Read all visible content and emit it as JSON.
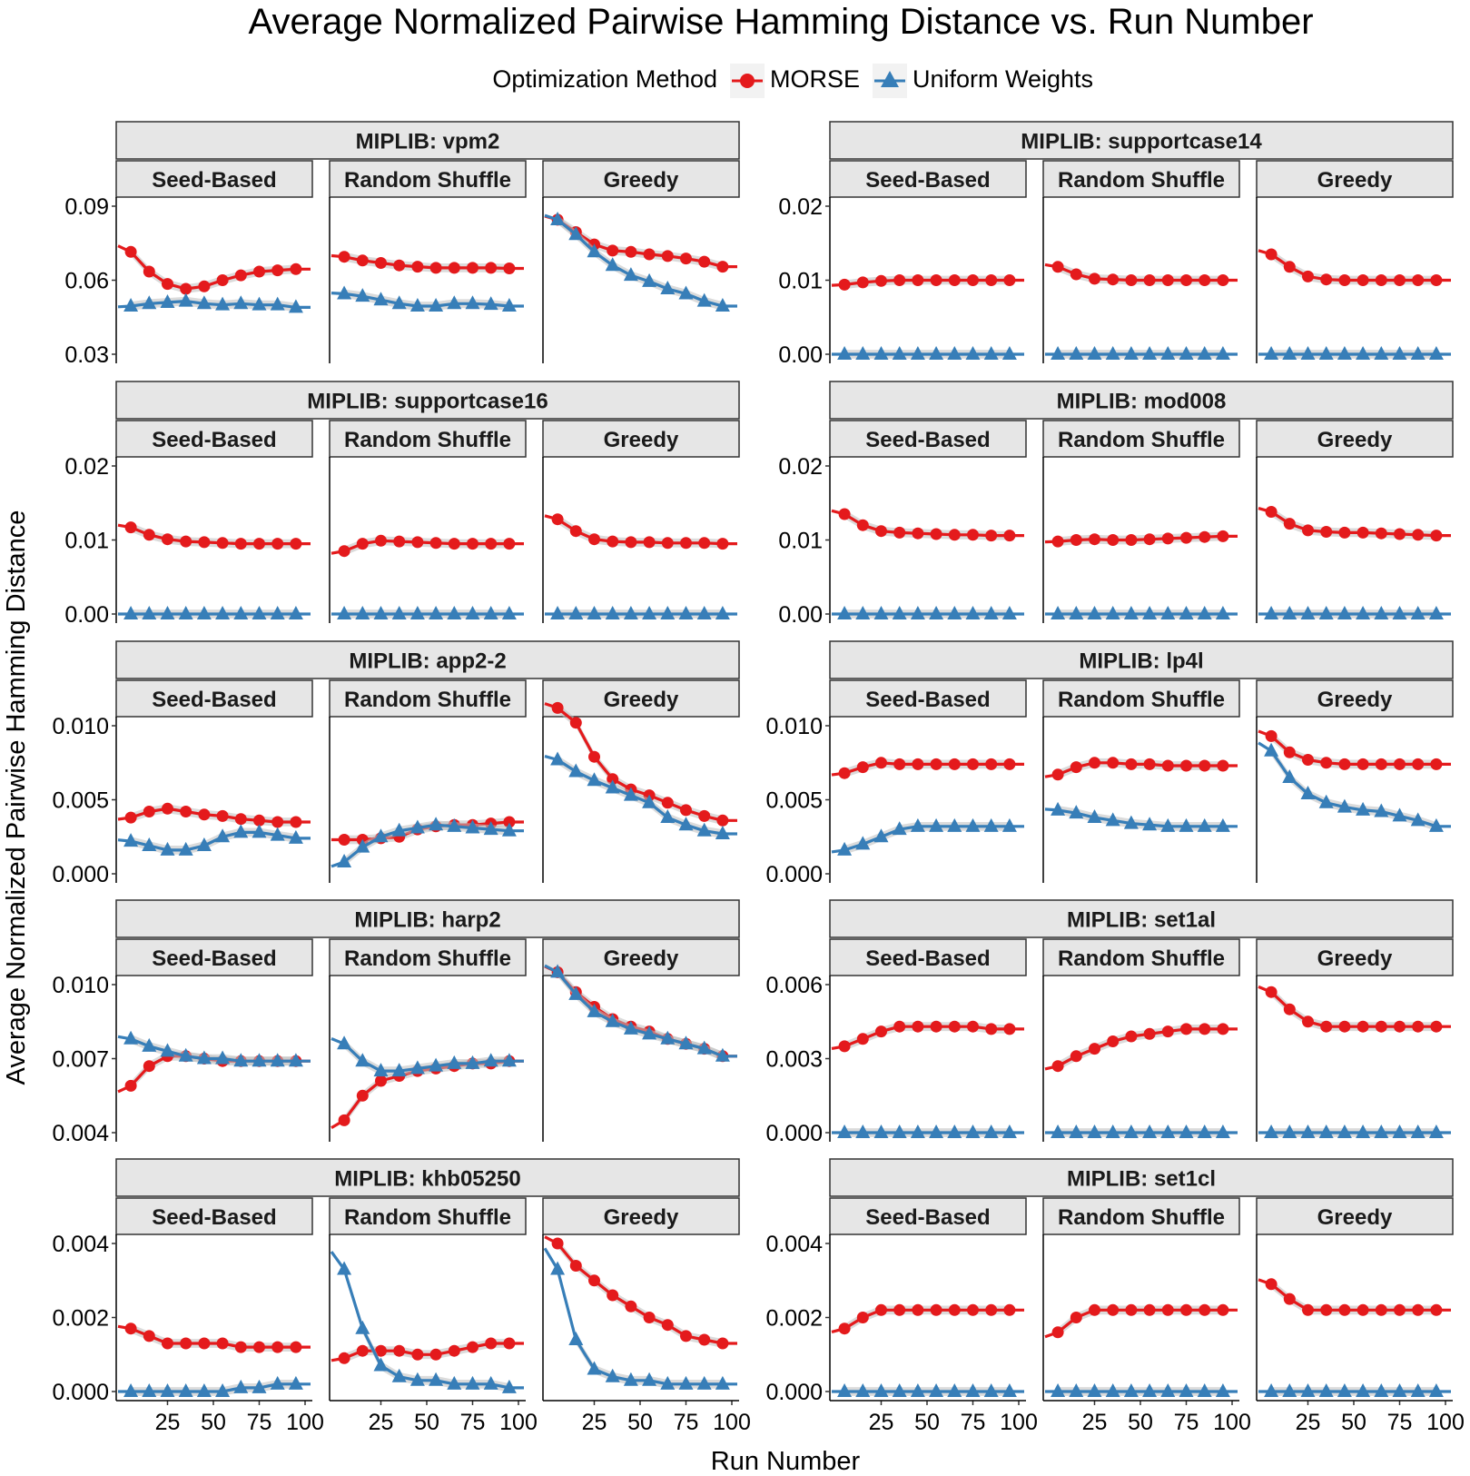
{
  "chart_data": {
    "type": "line",
    "title": "Average Normalized Pairwise Hamming Distance vs. Run Number",
    "xlabel": "Run Number",
    "ylabel": "Average Normalized Pairwise Hamming Distance",
    "legend": {
      "title": "Optimization Method",
      "position": "top",
      "entries": [
        {
          "name": "MORSE",
          "color": "#e41a1c",
          "marker": "circle"
        },
        {
          "name": "Uniform Weights",
          "color": "#377eb8",
          "marker": "triangle"
        }
      ]
    },
    "x": [
      5,
      15,
      25,
      35,
      45,
      55,
      65,
      75,
      85,
      95
    ],
    "xlim": [
      1,
      100
    ],
    "x_ticks": [
      "25",
      "50",
      "75",
      "100"
    ],
    "methods": [
      "Seed-Based",
      "Random Shuffle",
      "Greedy"
    ],
    "panels": [
      {
        "problem": "MIPLIB: vpm2",
        "ylim": [
          0.03,
          0.09
        ],
        "y_ticks": [
          "0.03",
          "0.06",
          "0.09"
        ],
        "series": {
          "Seed-Based": {
            "MORSE": [
              0.0715,
              0.0635,
              0.0585,
              0.0565,
              0.0575,
              0.06,
              0.062,
              0.0635,
              0.064,
              0.0645
            ],
            "Uniform Weights": [
              0.0495,
              0.0505,
              0.051,
              0.0515,
              0.0505,
              0.05,
              0.0505,
              0.05,
              0.05,
              0.049
            ]
          },
          "Random Shuffle": {
            "MORSE": [
              0.0695,
              0.068,
              0.067,
              0.066,
              0.0655,
              0.065,
              0.065,
              0.065,
              0.065,
              0.0648
            ],
            "Uniform Weights": [
              0.0545,
              0.0535,
              0.052,
              0.0505,
              0.0495,
              0.0495,
              0.0505,
              0.0505,
              0.0502,
              0.0495
            ]
          },
          "Greedy": {
            "MORSE": [
              0.0845,
              0.0795,
              0.0745,
              0.072,
              0.0715,
              0.0705,
              0.0698,
              0.0688,
              0.0675,
              0.0655
            ],
            "Uniform Weights": [
              0.0845,
              0.0785,
              0.0715,
              0.066,
              0.062,
              0.0595,
              0.0565,
              0.0545,
              0.0515,
              0.0495
            ]
          }
        }
      },
      {
        "problem": "MIPLIB: supportcase14",
        "ylim": [
          0.0,
          0.02
        ],
        "y_ticks": [
          "0.00",
          "0.01",
          "0.02"
        ],
        "series": {
          "Seed-Based": {
            "MORSE": [
              0.0094,
              0.0097,
              0.0099,
              0.01,
              0.01,
              0.01,
              0.01,
              0.01,
              0.01,
              0.01
            ],
            "Uniform Weights": [
              0.0,
              0.0,
              0.0,
              0.0,
              0.0,
              0.0,
              0.0,
              0.0,
              0.0,
              0.0
            ]
          },
          "Random Shuffle": {
            "MORSE": [
              0.0118,
              0.0108,
              0.0102,
              0.0101,
              0.01,
              0.01,
              0.01,
              0.01,
              0.01,
              0.01
            ],
            "Uniform Weights": [
              0.0,
              0.0,
              0.0,
              0.0,
              0.0,
              0.0,
              0.0,
              0.0,
              0.0,
              0.0
            ]
          },
          "Greedy": {
            "MORSE": [
              0.0135,
              0.0118,
              0.0105,
              0.0101,
              0.01,
              0.01,
              0.01,
              0.01,
              0.01,
              0.01
            ],
            "Uniform Weights": [
              0.0,
              0.0,
              0.0,
              0.0,
              0.0,
              0.0,
              0.0,
              0.0,
              0.0,
              0.0
            ]
          }
        }
      },
      {
        "problem": "MIPLIB: supportcase16",
        "ylim": [
          0.0,
          0.02
        ],
        "y_ticks": [
          "0.00",
          "0.01",
          "0.02"
        ],
        "series": {
          "Seed-Based": {
            "MORSE": [
              0.0117,
              0.0107,
              0.0101,
              0.0098,
              0.0097,
              0.0096,
              0.0095,
              0.0095,
              0.0095,
              0.0095
            ],
            "Uniform Weights": [
              0.0,
              0.0,
              0.0,
              0.0,
              0.0,
              0.0,
              0.0,
              0.0,
              0.0,
              0.0
            ]
          },
          "Random Shuffle": {
            "MORSE": [
              0.0085,
              0.0095,
              0.0099,
              0.0098,
              0.0097,
              0.0096,
              0.0095,
              0.0095,
              0.0095,
              0.0095
            ],
            "Uniform Weights": [
              0.0,
              0.0,
              0.0,
              0.0,
              0.0,
              0.0,
              0.0,
              0.0,
              0.0,
              0.0
            ]
          },
          "Greedy": {
            "MORSE": [
              0.0128,
              0.0112,
              0.0101,
              0.0098,
              0.0097,
              0.0097,
              0.0096,
              0.0096,
              0.0096,
              0.0095
            ],
            "Uniform Weights": [
              0.0,
              0.0,
              0.0,
              0.0,
              0.0,
              0.0,
              0.0,
              0.0,
              0.0,
              0.0
            ]
          }
        }
      },
      {
        "problem": "MIPLIB: mod008",
        "ylim": [
          0.0,
          0.02
        ],
        "y_ticks": [
          "0.00",
          "0.01",
          "0.02"
        ],
        "series": {
          "Seed-Based": {
            "MORSE": [
              0.0135,
              0.012,
              0.0112,
              0.011,
              0.0109,
              0.0108,
              0.0107,
              0.0107,
              0.0106,
              0.0106
            ],
            "Uniform Weights": [
              0.0,
              0.0,
              0.0,
              0.0,
              0.0,
              0.0,
              0.0,
              0.0,
              0.0,
              0.0
            ]
          },
          "Random Shuffle": {
            "MORSE": [
              0.0098,
              0.01,
              0.0101,
              0.01,
              0.01,
              0.0101,
              0.0102,
              0.0103,
              0.0104,
              0.0105
            ],
            "Uniform Weights": [
              0.0,
              0.0,
              0.0,
              0.0,
              0.0,
              0.0,
              0.0,
              0.0,
              0.0,
              0.0
            ]
          },
          "Greedy": {
            "MORSE": [
              0.0138,
              0.0122,
              0.0113,
              0.0111,
              0.011,
              0.011,
              0.0109,
              0.0108,
              0.0107,
              0.0106
            ],
            "Uniform Weights": [
              0.0,
              0.0,
              0.0,
              0.0,
              0.0,
              0.0,
              0.0,
              0.0,
              0.0,
              0.0
            ]
          }
        }
      },
      {
        "problem": "MIPLIB: app2-2",
        "ylim": [
          0.0,
          0.01
        ],
        "y_ticks": [
          "0.000",
          "0.005",
          "0.010"
        ],
        "series": {
          "Seed-Based": {
            "MORSE": [
              0.0038,
              0.0042,
              0.0044,
              0.0042,
              0.004,
              0.0039,
              0.0037,
              0.0036,
              0.0035,
              0.0035
            ],
            "Uniform Weights": [
              0.0022,
              0.0019,
              0.0016,
              0.0016,
              0.0019,
              0.0025,
              0.0028,
              0.0028,
              0.0026,
              0.0024
            ]
          },
          "Random Shuffle": {
            "MORSE": [
              0.0023,
              0.0023,
              0.0024,
              0.0025,
              0.003,
              0.0032,
              0.0033,
              0.0033,
              0.0034,
              0.0035
            ],
            "Uniform Weights": [
              0.0008,
              0.0018,
              0.0025,
              0.0029,
              0.0031,
              0.0033,
              0.0032,
              0.0031,
              0.003,
              0.0029
            ]
          },
          "Greedy": {
            "MORSE": [
              0.0112,
              0.0102,
              0.0079,
              0.0064,
              0.0057,
              0.0053,
              0.0048,
              0.0043,
              0.0039,
              0.0036
            ],
            "Uniform Weights": [
              0.0077,
              0.0069,
              0.0063,
              0.0058,
              0.0053,
              0.0048,
              0.0038,
              0.0033,
              0.0029,
              0.0027
            ]
          }
        }
      },
      {
        "problem": "MIPLIB: lp4l",
        "ylim": [
          0.0,
          0.01
        ],
        "y_ticks": [
          "0.000",
          "0.005",
          "0.010"
        ],
        "series": {
          "Seed-Based": {
            "MORSE": [
              0.0068,
              0.0072,
              0.0075,
              0.0074,
              0.0074,
              0.0074,
              0.0074,
              0.0074,
              0.0074,
              0.0074
            ],
            "Uniform Weights": [
              0.0016,
              0.002,
              0.0025,
              0.003,
              0.0032,
              0.0032,
              0.0032,
              0.0032,
              0.0032,
              0.0032
            ]
          },
          "Random Shuffle": {
            "MORSE": [
              0.0067,
              0.0072,
              0.0075,
              0.0075,
              0.0074,
              0.0074,
              0.0073,
              0.0073,
              0.0073,
              0.0073
            ],
            "Uniform Weights": [
              0.0043,
              0.0041,
              0.0038,
              0.0036,
              0.0034,
              0.0033,
              0.0032,
              0.0032,
              0.0032,
              0.0032
            ]
          },
          "Greedy": {
            "MORSE": [
              0.0093,
              0.0082,
              0.0077,
              0.0075,
              0.0074,
              0.0074,
              0.0074,
              0.0074,
              0.0074,
              0.0074
            ],
            "Uniform Weights": [
              0.0083,
              0.0065,
              0.0054,
              0.0048,
              0.0045,
              0.0043,
              0.0042,
              0.0039,
              0.0036,
              0.0032
            ]
          }
        }
      },
      {
        "problem": "MIPLIB: harp2",
        "ylim": [
          0.004,
          0.01
        ],
        "y_ticks": [
          "0.004",
          "0.007",
          "0.010"
        ],
        "series": {
          "Seed-Based": {
            "MORSE": [
              0.0059,
              0.0067,
              0.0071,
              0.0071,
              0.007,
              0.0069,
              0.0069,
              0.0069,
              0.0069,
              0.0069
            ],
            "Uniform Weights": [
              0.0078,
              0.0075,
              0.0073,
              0.0071,
              0.007,
              0.007,
              0.0069,
              0.0069,
              0.0069,
              0.0069
            ]
          },
          "Random Shuffle": {
            "MORSE": [
              0.0045,
              0.0055,
              0.0061,
              0.0063,
              0.0065,
              0.0066,
              0.0067,
              0.0068,
              0.0068,
              0.0069
            ],
            "Uniform Weights": [
              0.0076,
              0.0069,
              0.0065,
              0.0065,
              0.0066,
              0.0067,
              0.0068,
              0.0068,
              0.0069,
              0.0069
            ]
          },
          "Greedy": {
            "MORSE": [
              0.0105,
              0.0097,
              0.0091,
              0.0086,
              0.0083,
              0.0081,
              0.0078,
              0.0076,
              0.0074,
              0.0071
            ],
            "Uniform Weights": [
              0.0105,
              0.0096,
              0.0089,
              0.0085,
              0.0082,
              0.008,
              0.0078,
              0.0076,
              0.0074,
              0.0071
            ]
          }
        }
      },
      {
        "problem": "MIPLIB: set1al",
        "ylim": [
          0.0,
          0.006
        ],
        "y_ticks": [
          "0.000",
          "0.003",
          "0.006"
        ],
        "series": {
          "Seed-Based": {
            "MORSE": [
              0.0035,
              0.0038,
              0.0041,
              0.0043,
              0.0043,
              0.0043,
              0.0043,
              0.0043,
              0.0042,
              0.0042
            ],
            "Uniform Weights": [
              0.0,
              0.0,
              0.0,
              0.0,
              0.0,
              0.0,
              0.0,
              0.0,
              0.0,
              0.0
            ]
          },
          "Random Shuffle": {
            "MORSE": [
              0.0027,
              0.0031,
              0.0034,
              0.0037,
              0.0039,
              0.004,
              0.0041,
              0.0042,
              0.0042,
              0.0042
            ],
            "Uniform Weights": [
              0.0,
              0.0,
              0.0,
              0.0,
              0.0,
              0.0,
              0.0,
              0.0,
              0.0,
              0.0
            ]
          },
          "Greedy": {
            "MORSE": [
              0.0057,
              0.005,
              0.0045,
              0.0043,
              0.0043,
              0.0043,
              0.0043,
              0.0043,
              0.0043,
              0.0043
            ],
            "Uniform Weights": [
              0.0,
              0.0,
              0.0,
              0.0,
              0.0,
              0.0,
              0.0,
              0.0,
              0.0,
              0.0
            ]
          }
        }
      },
      {
        "problem": "MIPLIB: khb05250",
        "ylim": [
          0.0,
          0.004
        ],
        "y_ticks": [
          "0.000",
          "0.002",
          "0.004"
        ],
        "series": {
          "Seed-Based": {
            "MORSE": [
              0.0017,
              0.0015,
              0.0013,
              0.0013,
              0.0013,
              0.0013,
              0.0012,
              0.0012,
              0.0012,
              0.0012
            ],
            "Uniform Weights": [
              0.0,
              0.0,
              0.0,
              0.0,
              0.0,
              0.0,
              0.0001,
              0.0001,
              0.0002,
              0.0002
            ]
          },
          "Random Shuffle": {
            "MORSE": [
              0.0009,
              0.0011,
              0.0011,
              0.0011,
              0.001,
              0.001,
              0.0011,
              0.0012,
              0.0013,
              0.0013
            ],
            "Uniform Weights": [
              0.0033,
              0.0017,
              0.0007,
              0.0004,
              0.0003,
              0.0003,
              0.0002,
              0.0002,
              0.0002,
              0.0001
            ]
          },
          "Greedy": {
            "MORSE": [
              0.004,
              0.0034,
              0.003,
              0.0026,
              0.0023,
              0.002,
              0.0018,
              0.0015,
              0.0014,
              0.0013
            ],
            "Uniform Weights": [
              0.0033,
              0.0014,
              0.0006,
              0.0004,
              0.0003,
              0.0003,
              0.0002,
              0.0002,
              0.0002,
              0.0002
            ]
          }
        }
      },
      {
        "problem": "MIPLIB: set1cl",
        "ylim": [
          0.0,
          0.004
        ],
        "y_ticks": [
          "0.000",
          "0.002",
          "0.004"
        ],
        "series": {
          "Seed-Based": {
            "MORSE": [
              0.0017,
              0.002,
              0.0022,
              0.0022,
              0.0022,
              0.0022,
              0.0022,
              0.0022,
              0.0022,
              0.0022
            ],
            "Uniform Weights": [
              0.0,
              0.0,
              0.0,
              0.0,
              0.0,
              0.0,
              0.0,
              0.0,
              0.0,
              0.0
            ]
          },
          "Random Shuffle": {
            "MORSE": [
              0.0016,
              0.002,
              0.0022,
              0.0022,
              0.0022,
              0.0022,
              0.0022,
              0.0022,
              0.0022,
              0.0022
            ],
            "Uniform Weights": [
              0.0,
              0.0,
              0.0,
              0.0,
              0.0,
              0.0,
              0.0,
              0.0,
              0.0,
              0.0
            ]
          },
          "Greedy": {
            "MORSE": [
              0.0029,
              0.0025,
              0.0022,
              0.0022,
              0.0022,
              0.0022,
              0.0022,
              0.0022,
              0.0022,
              0.0022
            ],
            "Uniform Weights": [
              0.0,
              0.0,
              0.0,
              0.0,
              0.0,
              0.0,
              0.0,
              0.0,
              0.0,
              0.0
            ]
          }
        }
      }
    ]
  }
}
